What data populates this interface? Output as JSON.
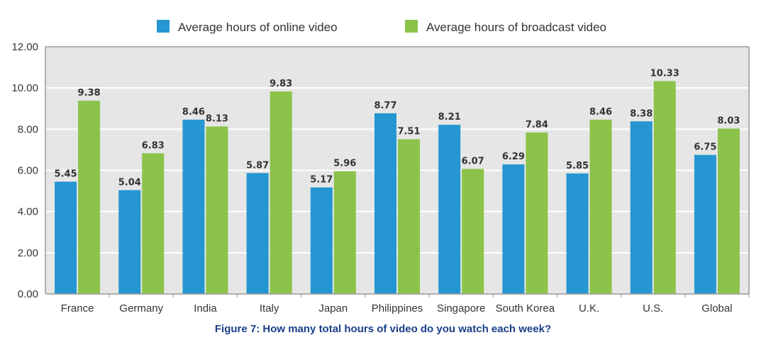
{
  "chart_data": {
    "type": "bar",
    "title": "",
    "caption": "Figure 7: How many total hours of video do you watch each week?",
    "xlabel": "",
    "ylabel": "",
    "ylim": [
      0,
      12
    ],
    "yticks": [
      "0.00",
      "2.00",
      "4.00",
      "6.00",
      "8.00",
      "10.00",
      "12.00"
    ],
    "grid": true,
    "legend_position": "top",
    "categories": [
      "France",
      "Germany",
      "India",
      "Italy",
      "Japan",
      "Philippines",
      "Singapore",
      "South Korea",
      "U.K.",
      "U.S.",
      "Global"
    ],
    "series": [
      {
        "name": "Average hours of online video",
        "color": "#2596d1",
        "values": [
          5.45,
          5.04,
          8.46,
          5.87,
          5.17,
          8.77,
          8.21,
          6.29,
          5.85,
          8.38,
          6.75
        ],
        "labels": [
          "5.45",
          "5.04",
          "8.46",
          "5.87",
          "5.17",
          "8.77",
          "8.21",
          "6.29",
          "5.85",
          "8.38",
          "6.75"
        ]
      },
      {
        "name": "Average hours of broadcast video",
        "color": "#8bc34a",
        "values": [
          9.38,
          6.83,
          8.13,
          9.83,
          5.96,
          7.51,
          6.07,
          7.84,
          8.46,
          10.33,
          8.03
        ],
        "labels": [
          "9.38",
          "6.83",
          "8.13",
          "9.83",
          "5.96",
          "7.51",
          "6.07",
          "7.84",
          "8.46",
          "10.33",
          "8.03"
        ]
      }
    ]
  }
}
